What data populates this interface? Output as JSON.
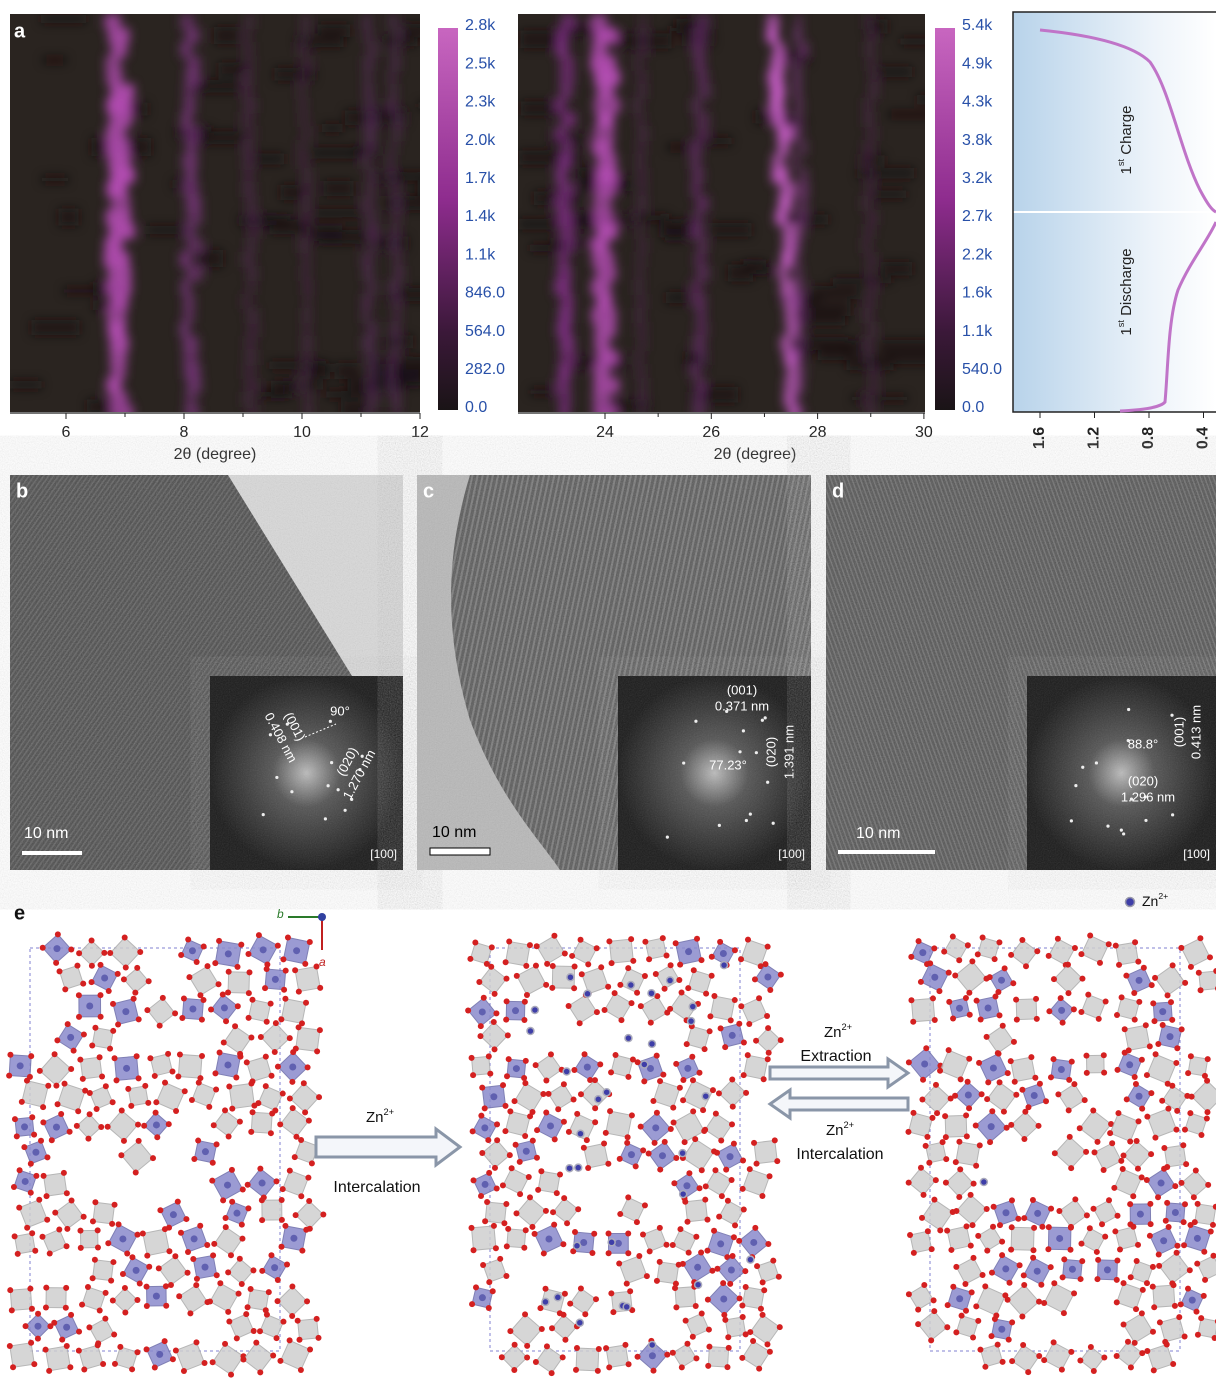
{
  "panel_a": {
    "label": "a",
    "left": {
      "xlabel": "2θ (degree)",
      "xticks": [
        "6",
        "8",
        "10",
        "12"
      ],
      "colorbar": [
        "2.8k",
        "2.5k",
        "2.3k",
        "2.0k",
        "1.7k",
        "1.4k",
        "1.1k",
        "846.0",
        "564.0",
        "282.0",
        "0.0"
      ]
    },
    "right": {
      "xlabel": "2θ (degree)",
      "xticks": [
        "24",
        "26",
        "28",
        "30"
      ],
      "colorbar": [
        "5.4k",
        "4.9k",
        "4.3k",
        "3.8k",
        "3.2k",
        "2.7k",
        "2.2k",
        "1.6k",
        "1.1k",
        "540.0",
        "0.0"
      ]
    },
    "voltage": {
      "xticks": [
        "1.6",
        "1.2",
        "0.8",
        "0.4"
      ],
      "charge": {
        "ordinal": "1",
        "suffix": "st",
        "text": " Charge"
      },
      "discharge": {
        "ordinal": "1",
        "suffix": "st",
        "text": " Discharge"
      }
    }
  },
  "panel_b": {
    "label": "b",
    "scale": "10 nm",
    "zone": "[100]",
    "annotations": [
      "90°",
      "(001)",
      "0.408 nm",
      "(020)",
      "1.270 nm"
    ]
  },
  "panel_c": {
    "label": "c",
    "scale": "10 nm",
    "zone": "[100]",
    "annotations": [
      "(001)",
      "0.371 nm",
      "77.23°",
      "(020)",
      "1.391 nm"
    ]
  },
  "panel_d": {
    "label": "d",
    "scale": "10 nm",
    "zone": "[100]",
    "annotations": [
      "88.8°",
      "(001)",
      "0.413 nm",
      "(020)",
      "1.296 nm"
    ]
  },
  "panel_e": {
    "label": "e",
    "legend": {
      "ion": "Zn",
      "charge": "2+"
    },
    "axes": [
      "b",
      "a"
    ],
    "step1": {
      "ion": "Zn",
      "charge": "2+",
      "text": "Intercalation"
    },
    "step2": {
      "ion": "Zn",
      "charge": "2+",
      "text": "Extraction"
    },
    "step3": {
      "ion": "Zn",
      "charge": "2+",
      "text": "Intercalation"
    }
  }
}
